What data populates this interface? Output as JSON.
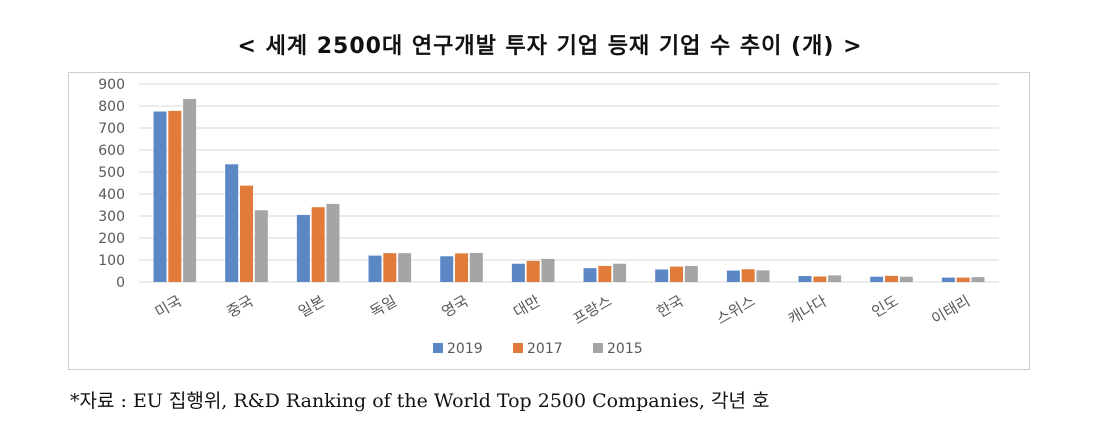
{
  "title": "< 세계 2500대 연구개발 투자 기업 등재 기업 수 추이 (개) >",
  "source": "*자료 : EU 집행위, R&D Ranking of the World Top 2500 Companies, 각년 호",
  "colors": {
    "s2019": "#5B87C5",
    "s2017": "#E07B39",
    "s2015": "#A5A5A5",
    "grid": "#D9D9D9",
    "axis_text": "#595959"
  },
  "chart_data": {
    "type": "bar",
    "categories": [
      "미국",
      "중국",
      "일본",
      "독일",
      "영국",
      "대만",
      "프랑스",
      "한국",
      "스위스",
      "캐나다",
      "인도",
      "이태리"
    ],
    "series": [
      {
        "name": "2019",
        "values": [
          775,
          535,
          305,
          120,
          117,
          83,
          63,
          57,
          52,
          27,
          24,
          20
        ]
      },
      {
        "name": "2017",
        "values": [
          778,
          438,
          340,
          131,
          130,
          96,
          73,
          70,
          58,
          25,
          28,
          20
        ]
      },
      {
        "name": "2015",
        "values": [
          832,
          326,
          355,
          131,
          132,
          105,
          83,
          73,
          53,
          30,
          24,
          22
        ]
      }
    ],
    "ylim": [
      0,
      900
    ],
    "yticks": [
      0,
      100,
      200,
      300,
      400,
      500,
      600,
      700,
      800,
      900
    ],
    "grid": true,
    "legend_position": "bottom"
  }
}
